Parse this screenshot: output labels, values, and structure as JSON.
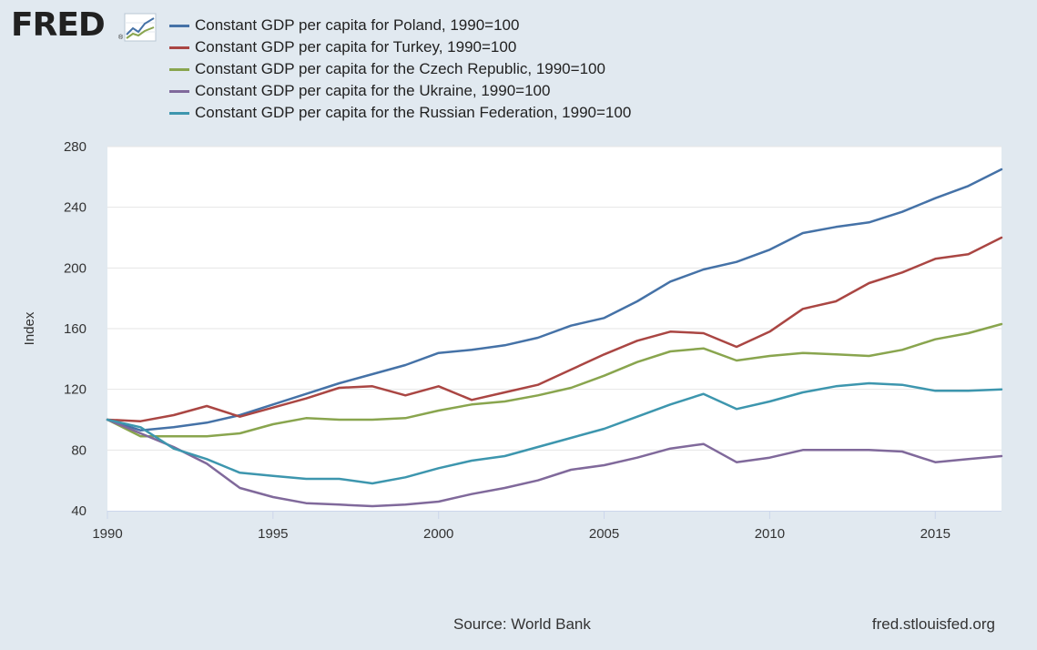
{
  "logo": {
    "text": "FRED",
    "reg": "®",
    "icon": "fred-line-graph-icon"
  },
  "footer": {
    "source": "Source: World Bank",
    "site": "fred.stlouisfed.org"
  },
  "colors": {
    "background": "#e1e9f0",
    "plot": "#ffffff",
    "grid": "#e6e6e6"
  },
  "chart_data": {
    "type": "line",
    "title": "",
    "xlabel": "",
    "ylabel": "Index",
    "xlim": [
      1990,
      2017
    ],
    "ylim": [
      40,
      280
    ],
    "grid": true,
    "legend_position": "top-left",
    "x_ticks": [
      1990,
      1995,
      2000,
      2005,
      2010,
      2015
    ],
    "y_ticks": [
      40,
      80,
      120,
      160,
      200,
      240,
      280
    ],
    "x": [
      1990,
      1991,
      1992,
      1993,
      1994,
      1995,
      1996,
      1997,
      1998,
      1999,
      2000,
      2001,
      2002,
      2003,
      2004,
      2005,
      2006,
      2007,
      2008,
      2009,
      2010,
      2011,
      2012,
      2013,
      2014,
      2015,
      2016,
      2017
    ],
    "series": [
      {
        "name": "Constant GDP per capita for Poland, 1990=100",
        "color": "#4572a7",
        "values": [
          100,
          93,
          95,
          98,
          103,
          110,
          117,
          124,
          130,
          136,
          144,
          146,
          149,
          154,
          162,
          167,
          178,
          191,
          199,
          204,
          212,
          223,
          227,
          230,
          237,
          246,
          254,
          265
        ]
      },
      {
        "name": "Constant GDP per capita for Turkey, 1990=100",
        "color": "#aa4643",
        "values": [
          100,
          99,
          103,
          109,
          102,
          108,
          114,
          121,
          122,
          116,
          122,
          113,
          118,
          123,
          133,
          143,
          152,
          158,
          157,
          148,
          158,
          173,
          178,
          190,
          197,
          206,
          209,
          220
        ]
      },
      {
        "name": "Constant GDP per capita for the Czech Republic, 1990=100",
        "color": "#89a54e",
        "values": [
          100,
          89,
          89,
          89,
          91,
          97,
          101,
          100,
          100,
          101,
          106,
          110,
          112,
          116,
          121,
          129,
          138,
          145,
          147,
          139,
          142,
          144,
          143,
          142,
          146,
          153,
          157,
          163
        ]
      },
      {
        "name": "Constant GDP per capita for the Ukraine, 1990=100",
        "color": "#80699b",
        "values": [
          100,
          91,
          82,
          71,
          55,
          49,
          45,
          44,
          43,
          44,
          46,
          51,
          55,
          60,
          67,
          70,
          75,
          81,
          84,
          72,
          75,
          80,
          80,
          80,
          79,
          72,
          74,
          76
        ]
      },
      {
        "name": "Constant GDP per capita for the Russian Federation, 1990=100",
        "color": "#3d96ae",
        "values": [
          100,
          95,
          81,
          74,
          65,
          63,
          61,
          61,
          58,
          62,
          68,
          73,
          76,
          82,
          88,
          94,
          102,
          110,
          117,
          107,
          112,
          118,
          122,
          124,
          123,
          119,
          119,
          120
        ]
      }
    ]
  }
}
